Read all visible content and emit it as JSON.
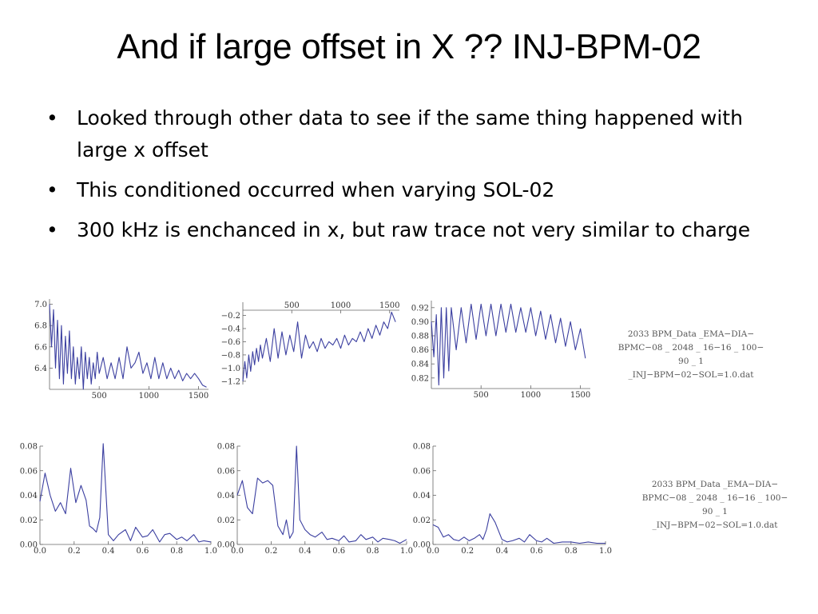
{
  "slide": {
    "title": "And if large offset in X ?? INJ-BPM-02",
    "bullets": [
      {
        "text": "Looked through other data to see if the same thing happened with large x offset"
      },
      {
        "text": "This conditioned occurred when varying SOL-02"
      },
      {
        "text": "300 kHz is enchanced in x, but raw trace not very similar to charge"
      }
    ],
    "bullet_glyph": "•",
    "captions": [
      {
        "lines": [
          "2033 BPM_Data _EMA−DIA−",
          "BPMC−08 _ 2048 _ 16−16 _ 100−",
          "90 _ 1 _INJ−BPM−02−SOL=1.0.dat"
        ]
      },
      {
        "lines": [
          "2033 BPM_Data _EMA−DIA−",
          "BPMC−08 _ 2048 _ 16−16 _ 100−",
          "90 _ 1 _INJ−BPM−02−SOL=1.0.dat"
        ]
      }
    ],
    "line_color": "#3b3fa0"
  },
  "chart_data": [
    {
      "type": "line",
      "id": "raw-left",
      "x_ticks": [
        "500",
        "1000",
        "1500"
      ],
      "x_tick_values": [
        500,
        1000,
        1500
      ],
      "y_ticks": [
        "6.4",
        "6.6",
        "6.8",
        "7.0"
      ],
      "y_tick_values": [
        6.4,
        6.6,
        6.8,
        7.0
      ],
      "xlim": [
        0,
        1600
      ],
      "ylim": [
        6.2,
        7.05
      ],
      "x_axis_at": "bottom",
      "x": [
        0,
        20,
        40,
        60,
        80,
        100,
        120,
        140,
        160,
        180,
        200,
        220,
        240,
        260,
        280,
        300,
        320,
        340,
        360,
        380,
        400,
        420,
        440,
        460,
        480,
        500,
        540,
        580,
        620,
        660,
        700,
        740,
        780,
        820,
        860,
        900,
        940,
        980,
        1020,
        1060,
        1100,
        1140,
        1180,
        1220,
        1260,
        1300,
        1340,
        1380,
        1420,
        1460,
        1500,
        1540,
        1580
      ],
      "values": [
        7.0,
        6.6,
        6.95,
        6.4,
        6.85,
        6.3,
        6.8,
        6.25,
        6.7,
        6.35,
        6.75,
        6.3,
        6.6,
        6.25,
        6.5,
        6.3,
        6.6,
        6.2,
        6.55,
        6.3,
        6.5,
        6.25,
        6.45,
        6.3,
        6.55,
        6.35,
        6.5,
        6.3,
        6.45,
        6.3,
        6.5,
        6.3,
        6.6,
        6.4,
        6.45,
        6.55,
        6.35,
        6.45,
        6.3,
        6.5,
        6.3,
        6.45,
        6.3,
        6.4,
        6.3,
        6.38,
        6.28,
        6.35,
        6.3,
        6.35,
        6.3,
        6.24,
        6.22
      ]
    },
    {
      "type": "line",
      "id": "raw-middle",
      "x_ticks": [
        "500",
        "1000",
        "1500"
      ],
      "x_tick_values": [
        500,
        1000,
        1500
      ],
      "y_ticks": [
        "−1.2",
        "−1.0",
        "−0.8",
        "−0.6",
        "−0.4",
        "−0.2"
      ],
      "y_tick_values": [
        -1.2,
        -1.0,
        -0.8,
        -0.6,
        -0.4,
        -0.2
      ],
      "xlim": [
        0,
        1600
      ],
      "ylim": [
        -1.25,
        0.0
      ],
      "x_axis_at": "top",
      "x": [
        0,
        20,
        40,
        60,
        80,
        100,
        120,
        140,
        160,
        180,
        200,
        240,
        280,
        320,
        360,
        400,
        440,
        480,
        520,
        560,
        600,
        640,
        680,
        720,
        760,
        800,
        840,
        880,
        920,
        960,
        1000,
        1040,
        1080,
        1120,
        1160,
        1200,
        1240,
        1280,
        1320,
        1360,
        1400,
        1440,
        1480,
        1520,
        1560
      ],
      "values": [
        -1.2,
        -0.9,
        -1.15,
        -0.8,
        -1.05,
        -0.75,
        -0.95,
        -0.7,
        -0.9,
        -0.65,
        -0.85,
        -0.55,
        -0.9,
        -0.4,
        -0.85,
        -0.45,
        -0.8,
        -0.5,
        -0.75,
        -0.3,
        -0.85,
        -0.5,
        -0.7,
        -0.6,
        -0.75,
        -0.55,
        -0.7,
        -0.6,
        -0.65,
        -0.55,
        -0.7,
        -0.5,
        -0.65,
        -0.55,
        -0.6,
        -0.45,
        -0.6,
        -0.4,
        -0.55,
        -0.35,
        -0.5,
        -0.3,
        -0.4,
        -0.15,
        -0.3
      ]
    },
    {
      "type": "line",
      "id": "raw-right",
      "x_ticks": [
        "500",
        "1000",
        "1500"
      ],
      "x_tick_values": [
        500,
        1000,
        1500
      ],
      "y_ticks": [
        "0.82",
        "0.84",
        "0.86",
        "0.88",
        "0.90",
        "0.92"
      ],
      "y_tick_values": [
        0.82,
        0.84,
        0.86,
        0.88,
        0.9,
        0.92
      ],
      "xlim": [
        0,
        1600
      ],
      "ylim": [
        0.805,
        0.93
      ],
      "x_axis_at": "bottom",
      "x": [
        0,
        25,
        50,
        75,
        100,
        125,
        150,
        175,
        200,
        250,
        300,
        350,
        400,
        450,
        500,
        550,
        600,
        650,
        700,
        750,
        800,
        850,
        900,
        950,
        1000,
        1050,
        1100,
        1150,
        1200,
        1250,
        1300,
        1350,
        1400,
        1450,
        1500,
        1550
      ],
      "values": [
        0.9,
        0.85,
        0.91,
        0.81,
        0.92,
        0.82,
        0.92,
        0.83,
        0.92,
        0.86,
        0.92,
        0.87,
        0.925,
        0.875,
        0.925,
        0.88,
        0.925,
        0.88,
        0.925,
        0.885,
        0.925,
        0.885,
        0.92,
        0.885,
        0.92,
        0.88,
        0.915,
        0.875,
        0.91,
        0.87,
        0.905,
        0.865,
        0.9,
        0.86,
        0.89,
        0.848
      ]
    },
    {
      "type": "line",
      "id": "fft-left",
      "x_ticks": [
        "0.0",
        "0.2",
        "0.4",
        "0.6",
        "0.8",
        "1.0"
      ],
      "x_tick_values": [
        0,
        0.2,
        0.4,
        0.6,
        0.8,
        1.0
      ],
      "y_ticks": [
        "0.00",
        "0.02",
        "0.04",
        "0.06",
        "0.08"
      ],
      "y_tick_values": [
        0,
        0.02,
        0.04,
        0.06,
        0.08
      ],
      "xlim": [
        0,
        1.0
      ],
      "ylim": [
        0,
        0.08
      ],
      "x_axis_at": "bottom",
      "x": [
        0.0,
        0.03,
        0.06,
        0.09,
        0.12,
        0.15,
        0.18,
        0.21,
        0.24,
        0.27,
        0.29,
        0.31,
        0.33,
        0.35,
        0.37,
        0.4,
        0.43,
        0.46,
        0.5,
        0.53,
        0.56,
        0.6,
        0.63,
        0.66,
        0.7,
        0.73,
        0.76,
        0.8,
        0.83,
        0.86,
        0.9,
        0.93,
        0.96,
        1.0
      ],
      "values": [
        0.035,
        0.058,
        0.04,
        0.027,
        0.034,
        0.025,
        0.062,
        0.034,
        0.048,
        0.036,
        0.015,
        0.013,
        0.01,
        0.022,
        0.082,
        0.008,
        0.003,
        0.008,
        0.012,
        0.003,
        0.014,
        0.006,
        0.007,
        0.012,
        0.002,
        0.008,
        0.009,
        0.004,
        0.006,
        0.003,
        0.008,
        0.002,
        0.003,
        0.002
      ]
    },
    {
      "type": "line",
      "id": "fft-middle",
      "x_ticks": [
        "0.0",
        "0.2",
        "0.4",
        "0.6",
        "0.8",
        "1.0"
      ],
      "x_tick_values": [
        0,
        0.2,
        0.4,
        0.6,
        0.8,
        1.0
      ],
      "y_ticks": [
        "0.00",
        "0.02",
        "0.04",
        "0.06",
        "0.08"
      ],
      "y_tick_values": [
        0,
        0.02,
        0.04,
        0.06,
        0.08
      ],
      "xlim": [
        0,
        1.0
      ],
      "ylim": [
        0,
        0.08
      ],
      "x_axis_at": "bottom",
      "x": [
        0.0,
        0.03,
        0.06,
        0.09,
        0.12,
        0.15,
        0.18,
        0.21,
        0.24,
        0.27,
        0.29,
        0.31,
        0.33,
        0.35,
        0.37,
        0.4,
        0.43,
        0.46,
        0.5,
        0.53,
        0.56,
        0.6,
        0.63,
        0.66,
        0.7,
        0.73,
        0.76,
        0.8,
        0.83,
        0.86,
        0.9,
        0.93,
        0.96,
        1.0
      ],
      "values": [
        0.04,
        0.052,
        0.03,
        0.025,
        0.054,
        0.05,
        0.052,
        0.048,
        0.015,
        0.008,
        0.02,
        0.005,
        0.01,
        0.08,
        0.02,
        0.012,
        0.008,
        0.006,
        0.01,
        0.004,
        0.005,
        0.003,
        0.007,
        0.002,
        0.003,
        0.008,
        0.004,
        0.006,
        0.002,
        0.005,
        0.004,
        0.003,
        0.001,
        0.004
      ]
    },
    {
      "type": "line",
      "id": "fft-right",
      "x_ticks": [
        "0.0",
        "0.2",
        "0.4",
        "0.6",
        "0.8",
        "1.0"
      ],
      "x_tick_values": [
        0,
        0.2,
        0.4,
        0.6,
        0.8,
        1.0
      ],
      "y_ticks": [
        "0.00",
        "0.02",
        "0.04",
        "0.06",
        "0.08"
      ],
      "y_tick_values": [
        0,
        0.02,
        0.04,
        0.06,
        0.08
      ],
      "xlim": [
        0,
        1.0
      ],
      "ylim": [
        0,
        0.08
      ],
      "x_axis_at": "bottom",
      "x": [
        0.0,
        0.03,
        0.06,
        0.09,
        0.12,
        0.15,
        0.18,
        0.21,
        0.24,
        0.27,
        0.29,
        0.31,
        0.33,
        0.36,
        0.4,
        0.43,
        0.46,
        0.5,
        0.53,
        0.56,
        0.6,
        0.63,
        0.66,
        0.7,
        0.75,
        0.8,
        0.85,
        0.9,
        0.95,
        1.0
      ],
      "values": [
        0.016,
        0.014,
        0.006,
        0.008,
        0.004,
        0.003,
        0.006,
        0.003,
        0.005,
        0.008,
        0.004,
        0.012,
        0.025,
        0.018,
        0.004,
        0.002,
        0.003,
        0.005,
        0.002,
        0.008,
        0.003,
        0.002,
        0.005,
        0.001,
        0.002,
        0.002,
        0.001,
        0.002,
        0.001,
        0.001
      ]
    }
  ]
}
